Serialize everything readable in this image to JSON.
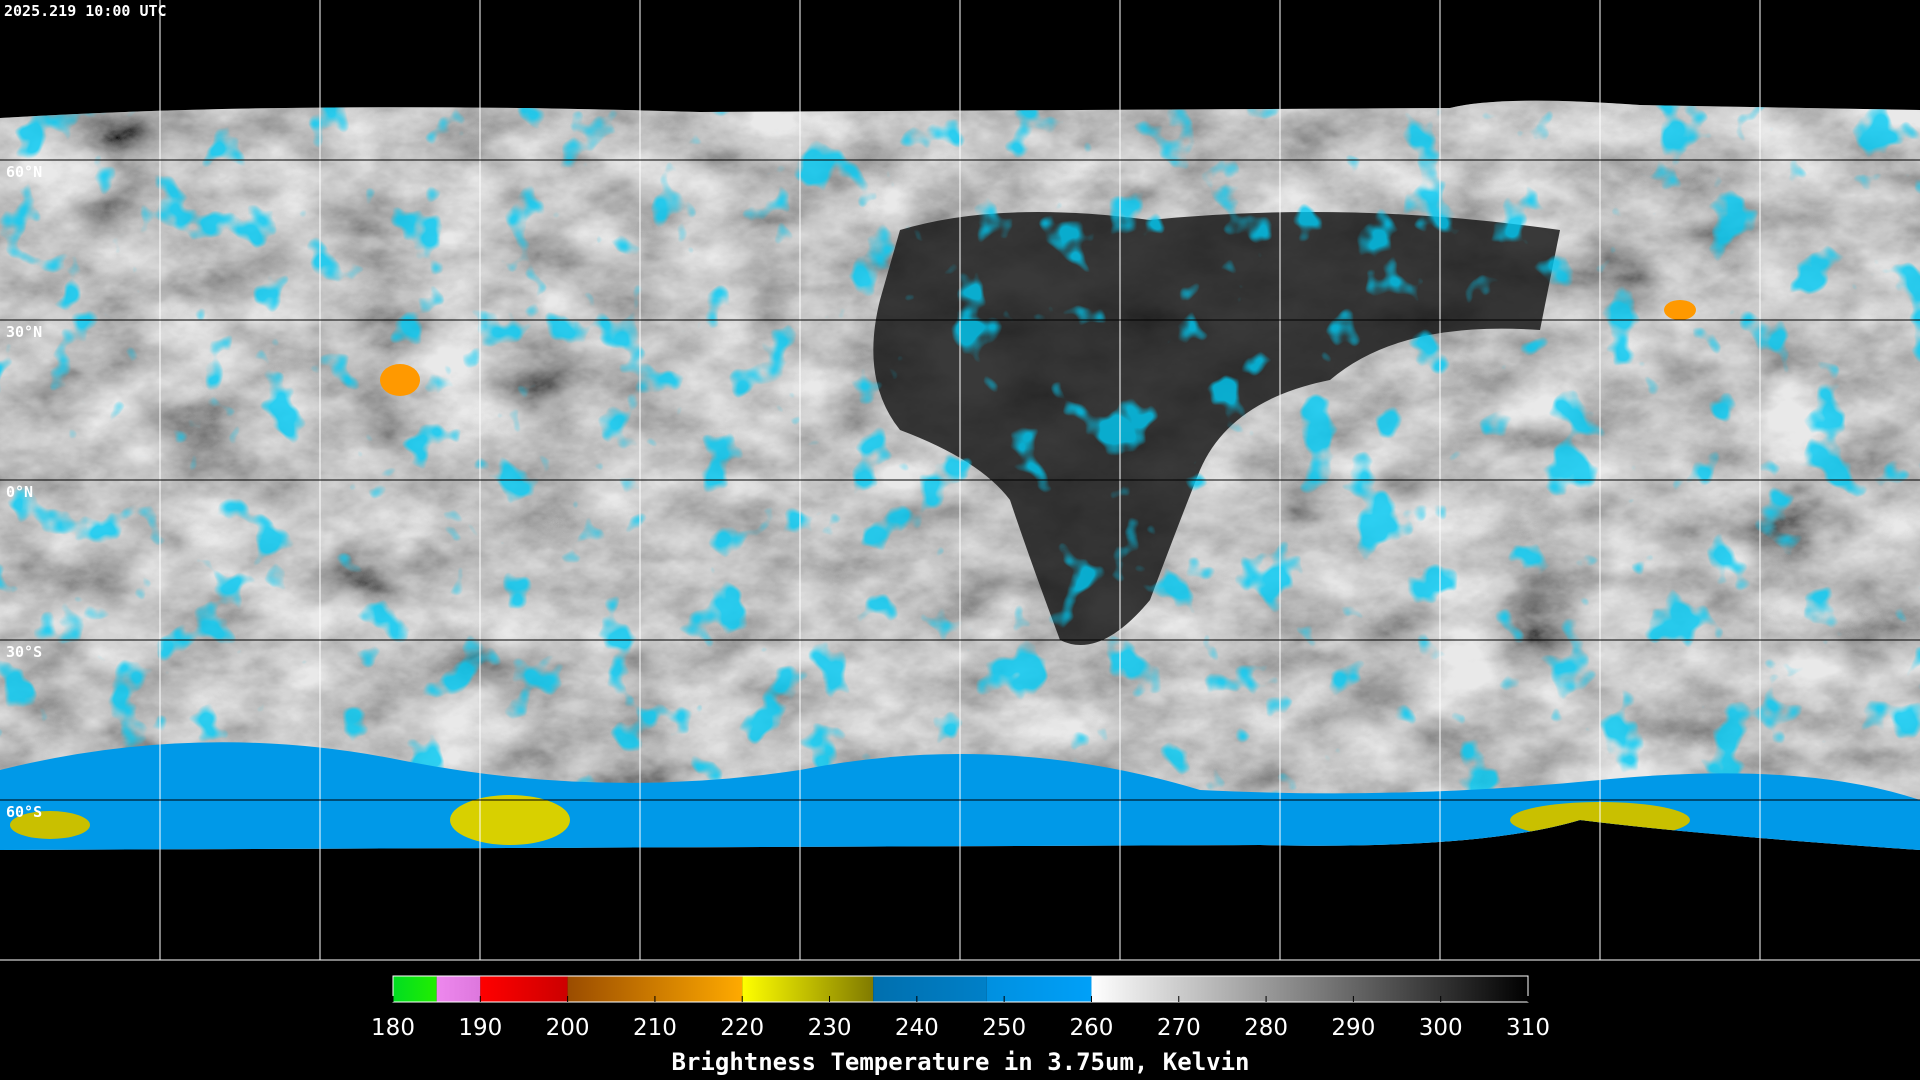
{
  "timestamp": "2025.219 10:00 UTC",
  "map": {
    "meridians": [
      -150,
      -120,
      -90,
      -60,
      -30,
      0,
      30,
      60,
      90,
      120,
      150
    ],
    "parallels": [
      {
        "value": 60,
        "label": "60°N"
      },
      {
        "value": 30,
        "label": "30°N"
      },
      {
        "value": 0,
        "label": "0°N"
      },
      {
        "value": -30,
        "label": "30°S"
      },
      {
        "value": -60,
        "label": "60°S"
      }
    ]
  },
  "colorbar": {
    "title": "Brightness Temperature in 3.75um, Kelvin",
    "range": [
      180,
      310
    ],
    "ticks": [
      180,
      190,
      200,
      210,
      220,
      230,
      240,
      250,
      260,
      270,
      280,
      290,
      300,
      310
    ],
    "segments": [
      {
        "from": 180,
        "to": 185,
        "colors": [
          "#00dd22",
          "#22ee00"
        ]
      },
      {
        "from": 185,
        "to": 190,
        "colors": [
          "#ee88ee",
          "#dd77dd"
        ]
      },
      {
        "from": 190,
        "to": 200,
        "colors": [
          "#ff0000",
          "#cc0000"
        ]
      },
      {
        "from": 200,
        "to": 220,
        "colors": [
          "#9a4c00",
          "#ffaa00"
        ]
      },
      {
        "from": 220,
        "to": 235,
        "colors": [
          "#ffff00",
          "#807a00"
        ]
      },
      {
        "from": 235,
        "to": 248,
        "colors": [
          "#006fae",
          "#0080c8"
        ]
      },
      {
        "from": 248,
        "to": 260,
        "colors": [
          "#0090e0",
          "#00a0f8"
        ]
      },
      {
        "from": 260,
        "to": 310,
        "colors": [
          "#ffffff",
          "#000000"
        ]
      }
    ]
  }
}
